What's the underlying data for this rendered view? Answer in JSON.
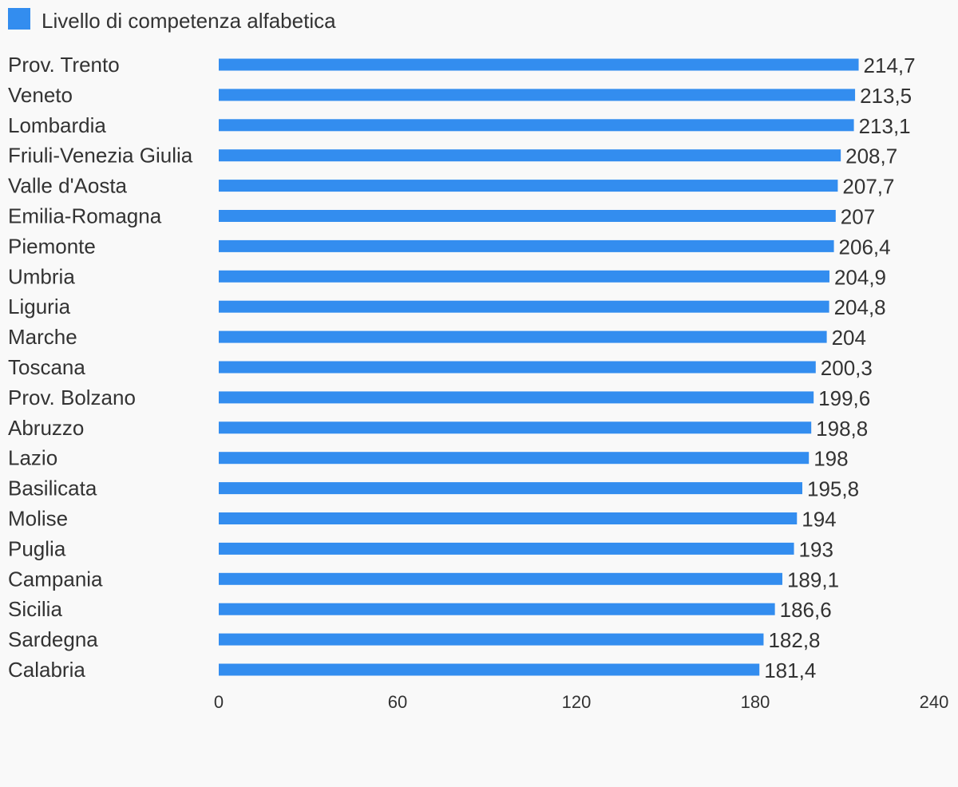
{
  "colors": {
    "bar": "#338def",
    "text": "#333333",
    "background": "#f9f9f9"
  },
  "chart_data": {
    "type": "bar",
    "orientation": "horizontal",
    "legend": {
      "position": "top-left",
      "entries": [
        "Livello di competenza alfabetica"
      ]
    },
    "series": [
      {
        "name": "Livello di competenza alfabetica",
        "values": [
          214.7,
          213.5,
          213.1,
          208.7,
          207.7,
          207,
          206.4,
          204.9,
          204.8,
          204,
          200.3,
          199.6,
          198.8,
          198,
          195.8,
          194,
          193,
          189.1,
          186.6,
          182.8,
          181.4
        ],
        "value_labels": [
          "214,7",
          "213,5",
          "213,1",
          "208,7",
          "207,7",
          "207",
          "206,4",
          "204,9",
          "204,8",
          "204",
          "200,3",
          "199,6",
          "198,8",
          "198",
          "195,8",
          "194",
          "193",
          "189,1",
          "186,6",
          "182,8",
          "181,4"
        ]
      }
    ],
    "categories": [
      "Prov. Trento",
      "Veneto",
      "Lombardia",
      "Friuli-Venezia Giulia",
      "Valle d'Aosta",
      "Emilia-Romagna",
      "Piemonte",
      "Umbria",
      "Liguria",
      "Marche",
      "Toscana",
      "Prov. Bolzano",
      "Abruzzo",
      "Lazio",
      "Basilicata",
      "Molise",
      "Puglia",
      "Campania",
      "Sicilia",
      "Sardegna",
      "Calabria"
    ],
    "xlim": [
      0,
      240
    ],
    "xticks": [
      0,
      60,
      120,
      180,
      240
    ],
    "xtick_labels": [
      "0",
      "60",
      "120",
      "180",
      "240"
    ],
    "grid": false
  }
}
